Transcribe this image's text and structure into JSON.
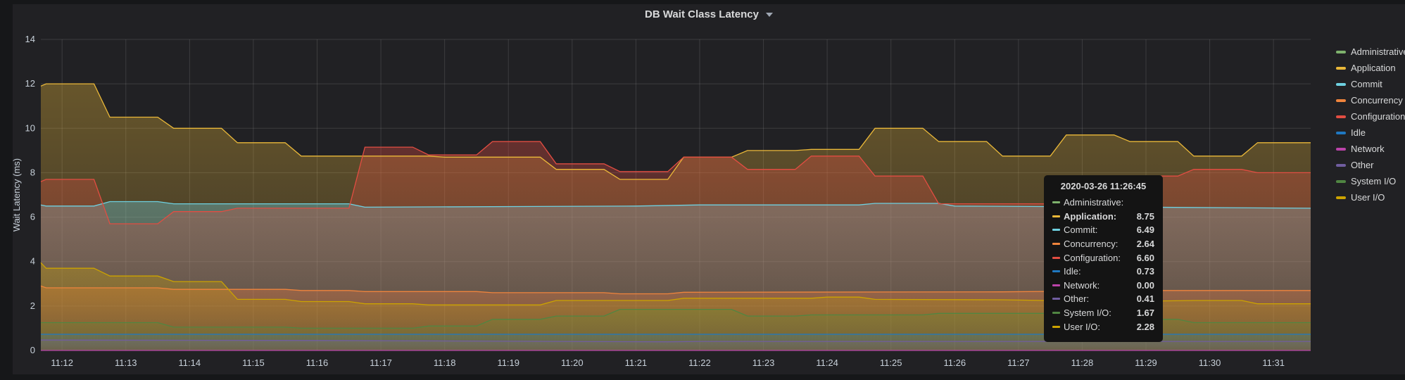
{
  "panel": {
    "title": "DB Wait Class Latency"
  },
  "chart_data": {
    "type": "line",
    "title": "DB Wait Class Latency",
    "xlabel": "",
    "ylabel": "Wait Latency (ms)",
    "xlim": [
      "11:11:40",
      "11:31:35"
    ],
    "ylim": [
      0,
      14
    ],
    "yticks": [
      "0",
      "2",
      "4",
      "6",
      "8",
      "10",
      "12",
      "14"
    ],
    "xticks": [
      "11:12",
      "11:13",
      "11:14",
      "11:15",
      "11:16",
      "11:17",
      "11:18",
      "11:19",
      "11:20",
      "11:21",
      "11:22",
      "11:23",
      "11:24",
      "11:25",
      "11:26",
      "11:27",
      "11:28",
      "11:29",
      "11:30",
      "11:31"
    ],
    "grid": true,
    "fill": true,
    "legend_position": "right",
    "series": [
      {
        "name": "Administrative",
        "color": "#7eb26d",
        "points": []
      },
      {
        "name": "Application",
        "color": "#eab839",
        "points": [
          [
            "11:11:40",
            11.9
          ],
          [
            "11:11:45",
            12.0
          ],
          [
            "11:12:30",
            12.0
          ],
          [
            "11:12:45",
            10.5
          ],
          [
            "11:13:30",
            10.5
          ],
          [
            "11:13:45",
            10.0
          ],
          [
            "11:14:30",
            10.0
          ],
          [
            "11:14:45",
            9.35
          ],
          [
            "11:15:30",
            9.35
          ],
          [
            "11:15:45",
            8.75
          ],
          [
            "11:17:45",
            8.75
          ],
          [
            "11:18:00",
            8.7
          ],
          [
            "11:19:30",
            8.7
          ],
          [
            "11:19:45",
            8.15
          ],
          [
            "11:20:30",
            8.15
          ],
          [
            "11:20:45",
            7.7
          ],
          [
            "11:21:30",
            7.7
          ],
          [
            "11:21:45",
            8.7
          ],
          [
            "11:22:30",
            8.7
          ],
          [
            "11:22:45",
            9.0
          ],
          [
            "11:23:30",
            9.0
          ],
          [
            "11:23:45",
            9.05
          ],
          [
            "11:24:30",
            9.05
          ],
          [
            "11:24:45",
            10.0
          ],
          [
            "11:25:30",
            10.0
          ],
          [
            "11:25:45",
            9.4
          ],
          [
            "11:26:30",
            9.4
          ],
          [
            "11:26:45",
            8.75
          ],
          [
            "11:27:30",
            8.75
          ],
          [
            "11:27:45",
            9.7
          ],
          [
            "11:28:30",
            9.7
          ],
          [
            "11:28:45",
            9.4
          ],
          [
            "11:29:30",
            9.4
          ],
          [
            "11:29:45",
            8.75
          ],
          [
            "11:30:30",
            8.75
          ],
          [
            "11:30:45",
            9.35
          ],
          [
            "11:31:35",
            9.35
          ]
        ]
      },
      {
        "name": "Commit",
        "color": "#6ed0e0",
        "points": [
          [
            "11:11:40",
            6.55
          ],
          [
            "11:11:45",
            6.5
          ],
          [
            "11:12:30",
            6.5
          ],
          [
            "11:12:45",
            6.7
          ],
          [
            "11:13:30",
            6.7
          ],
          [
            "11:13:45",
            6.6
          ],
          [
            "11:15:30",
            6.6
          ],
          [
            "11:16:30",
            6.6
          ],
          [
            "11:16:45",
            6.45
          ],
          [
            "11:21:00",
            6.5
          ],
          [
            "11:22:00",
            6.55
          ],
          [
            "11:24:30",
            6.55
          ],
          [
            "11:24:45",
            6.62
          ],
          [
            "11:25:45",
            6.62
          ],
          [
            "11:26:00",
            6.5
          ],
          [
            "11:26:45",
            6.49
          ],
          [
            "11:29:00",
            6.45
          ],
          [
            "11:31:35",
            6.4
          ]
        ]
      },
      {
        "name": "Concurrency",
        "color": "#ef843c",
        "points": [
          [
            "11:11:40",
            2.9
          ],
          [
            "11:11:45",
            2.82
          ],
          [
            "11:13:30",
            2.82
          ],
          [
            "11:13:45",
            2.75
          ],
          [
            "11:15:30",
            2.75
          ],
          [
            "11:15:45",
            2.7
          ],
          [
            "11:16:30",
            2.7
          ],
          [
            "11:16:45",
            2.65
          ],
          [
            "11:18:30",
            2.65
          ],
          [
            "11:18:45",
            2.6
          ],
          [
            "11:20:30",
            2.6
          ],
          [
            "11:20:45",
            2.55
          ],
          [
            "11:21:30",
            2.55
          ],
          [
            "11:21:45",
            2.62
          ],
          [
            "11:26:45",
            2.64
          ],
          [
            "11:29:00",
            2.7
          ],
          [
            "11:31:35",
            2.7
          ]
        ]
      },
      {
        "name": "Configuration",
        "color": "#e24d42",
        "points": [
          [
            "11:11:40",
            7.6
          ],
          [
            "11:11:45",
            7.7
          ],
          [
            "11:12:30",
            7.7
          ],
          [
            "11:12:45",
            5.7
          ],
          [
            "11:13:30",
            5.7
          ],
          [
            "11:13:45",
            6.25
          ],
          [
            "11:14:30",
            6.25
          ],
          [
            "11:14:45",
            6.4
          ],
          [
            "11:16:30",
            6.4
          ],
          [
            "11:16:45",
            9.15
          ],
          [
            "11:17:30",
            9.15
          ],
          [
            "11:17:45",
            8.8
          ],
          [
            "11:18:30",
            8.8
          ],
          [
            "11:18:45",
            9.4
          ],
          [
            "11:19:30",
            9.4
          ],
          [
            "11:19:45",
            8.4
          ],
          [
            "11:20:30",
            8.4
          ],
          [
            "11:20:45",
            8.05
          ],
          [
            "11:21:30",
            8.05
          ],
          [
            "11:21:45",
            8.7
          ],
          [
            "11:22:30",
            8.7
          ],
          [
            "11:22:45",
            8.15
          ],
          [
            "11:23:30",
            8.15
          ],
          [
            "11:23:45",
            8.75
          ],
          [
            "11:24:30",
            8.75
          ],
          [
            "11:24:45",
            7.85
          ],
          [
            "11:25:30",
            7.85
          ],
          [
            "11:25:45",
            6.6
          ],
          [
            "11:27:30",
            6.6
          ],
          [
            "11:27:45",
            7.85
          ],
          [
            "11:29:30",
            7.85
          ],
          [
            "11:29:45",
            8.15
          ],
          [
            "11:30:30",
            8.15
          ],
          [
            "11:30:45",
            8.0
          ],
          [
            "11:31:35",
            8.0
          ]
        ]
      },
      {
        "name": "Idle",
        "color": "#1f78c1",
        "points": [
          [
            "11:11:40",
            0.73
          ],
          [
            "11:31:35",
            0.73
          ]
        ]
      },
      {
        "name": "Network",
        "color": "#ba43a9",
        "points": [
          [
            "11:11:40",
            0.0
          ],
          [
            "11:31:35",
            0.0
          ]
        ]
      },
      {
        "name": "Other",
        "color": "#705da0",
        "points": [
          [
            "11:11:40",
            0.47
          ],
          [
            "11:16:00",
            0.45
          ],
          [
            "11:21:30",
            0.39
          ],
          [
            "11:22:00",
            0.41
          ],
          [
            "11:31:35",
            0.41
          ]
        ]
      },
      {
        "name": "System I/O",
        "color": "#508642",
        "points": [
          [
            "11:11:40",
            1.25
          ],
          [
            "11:13:30",
            1.25
          ],
          [
            "11:13:45",
            1.05
          ],
          [
            "11:15:30",
            1.05
          ],
          [
            "11:15:45",
            1.0
          ],
          [
            "11:17:30",
            1.0
          ],
          [
            "11:17:45",
            1.1
          ],
          [
            "11:18:30",
            1.1
          ],
          [
            "11:18:45",
            1.4
          ],
          [
            "11:19:30",
            1.4
          ],
          [
            "11:19:45",
            1.55
          ],
          [
            "11:20:30",
            1.55
          ],
          [
            "11:20:45",
            1.85
          ],
          [
            "11:22:30",
            1.85
          ],
          [
            "11:22:45",
            1.55
          ],
          [
            "11:23:30",
            1.55
          ],
          [
            "11:23:45",
            1.6
          ],
          [
            "11:25:30",
            1.6
          ],
          [
            "11:25:45",
            1.67
          ],
          [
            "11:28:30",
            1.67
          ],
          [
            "11:28:45",
            1.4
          ],
          [
            "11:29:30",
            1.4
          ],
          [
            "11:29:45",
            1.25
          ],
          [
            "11:31:35",
            1.25
          ]
        ]
      },
      {
        "name": "User I/O",
        "color": "#cca300",
        "points": [
          [
            "11:11:40",
            3.95
          ],
          [
            "11:11:45",
            3.7
          ],
          [
            "11:12:30",
            3.7
          ],
          [
            "11:12:45",
            3.35
          ],
          [
            "11:13:30",
            3.35
          ],
          [
            "11:13:45",
            3.1
          ],
          [
            "11:14:30",
            3.1
          ],
          [
            "11:14:45",
            2.3
          ],
          [
            "11:15:30",
            2.3
          ],
          [
            "11:15:45",
            2.2
          ],
          [
            "11:16:30",
            2.2
          ],
          [
            "11:16:45",
            2.1
          ],
          [
            "11:17:30",
            2.1
          ],
          [
            "11:17:45",
            2.05
          ],
          [
            "11:19:30",
            2.05
          ],
          [
            "11:19:45",
            2.25
          ],
          [
            "11:21:30",
            2.25
          ],
          [
            "11:21:45",
            2.35
          ],
          [
            "11:23:45",
            2.35
          ],
          [
            "11:24:00",
            2.4
          ],
          [
            "11:24:30",
            2.4
          ],
          [
            "11:24:45",
            2.3
          ],
          [
            "11:26:45",
            2.28
          ],
          [
            "11:28:30",
            2.2
          ],
          [
            "11:29:45",
            2.25
          ],
          [
            "11:30:30",
            2.25
          ],
          [
            "11:30:45",
            2.1
          ],
          [
            "11:31:35",
            2.1
          ]
        ]
      }
    ],
    "tooltip": {
      "time": "2020-03-26 11:26:45",
      "highlighted": "Application",
      "rows": [
        {
          "name": "Administrative:",
          "value": "",
          "color": "#7eb26d"
        },
        {
          "name": "Application:",
          "value": "8.75",
          "color": "#eab839"
        },
        {
          "name": "Commit:",
          "value": "6.49",
          "color": "#6ed0e0"
        },
        {
          "name": "Concurrency:",
          "value": "2.64",
          "color": "#ef843c"
        },
        {
          "name": "Configuration:",
          "value": "6.60",
          "color": "#e24d42"
        },
        {
          "name": "Idle:",
          "value": "0.73",
          "color": "#1f78c1"
        },
        {
          "name": "Network:",
          "value": "0.00",
          "color": "#ba43a9"
        },
        {
          "name": "Other:",
          "value": "0.41",
          "color": "#705da0"
        },
        {
          "name": "System I/O:",
          "value": "1.67",
          "color": "#508642"
        },
        {
          "name": "User I/O:",
          "value": "2.28",
          "color": "#cca300"
        }
      ]
    }
  }
}
